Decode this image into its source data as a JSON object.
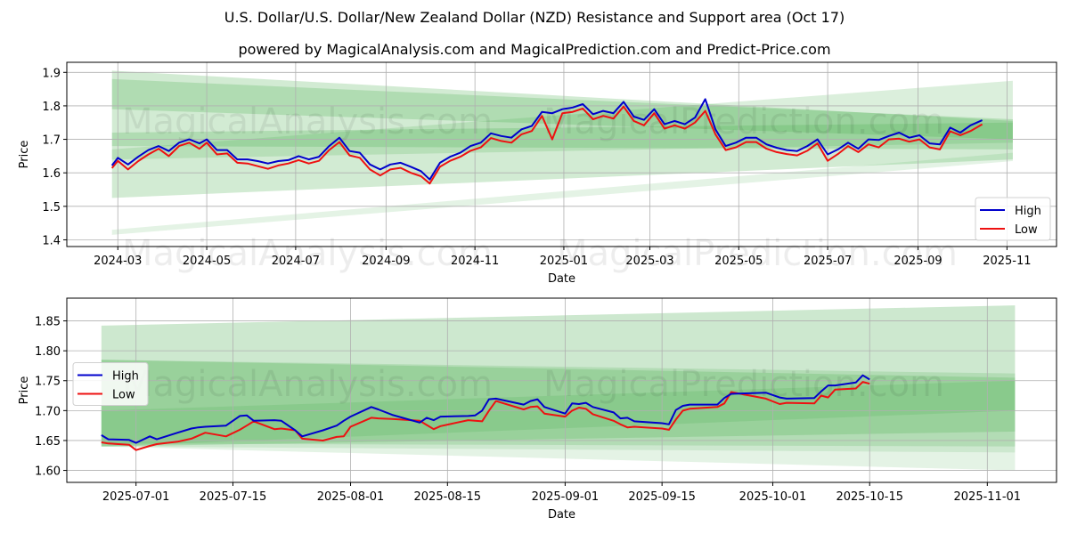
{
  "title": "U.S. Dollar/U.S. Dollar/New Zealand Dollar (NZD) Resistance and Support area (Oct 17)",
  "subtitle": "powered by MagicalAnalysis.com and MagicalPrediction.com and Predict-Price.com",
  "watermarks": [
    "MagicalAnalysis.com",
    "MagicalPrediction.com"
  ],
  "colors": {
    "high": "#0000cc",
    "low": "#ee1111",
    "band": "#4caf50"
  },
  "chart_data": [
    {
      "type": "line",
      "name": "full-history",
      "xlabel": "Date",
      "ylabel": "Price",
      "ylim": [
        1.38,
        1.93
      ],
      "xlim": [
        "2024-01-26",
        "2025-12-05"
      ],
      "yticks": [
        1.4,
        1.5,
        1.6,
        1.7,
        1.8,
        1.9
      ],
      "ytick_labels": [
        "1.4",
        "1.5",
        "1.6",
        "1.7",
        "1.8",
        "1.9"
      ],
      "xticks": [
        "2024-03-01",
        "2024-05-01",
        "2024-07-01",
        "2024-09-01",
        "2024-11-01",
        "2025-01-01",
        "2025-03-01",
        "2025-05-01",
        "2025-07-01",
        "2025-09-01",
        "2025-11-01"
      ],
      "xtick_labels": [
        "2024-03",
        "2024-05",
        "2024-07",
        "2024-09",
        "2024-11",
        "2025-01",
        "2025-03",
        "2025-05",
        "2025-07",
        "2025-09",
        "2025-11"
      ],
      "grid": true,
      "legend": {
        "position": "lower-right",
        "entries": [
          "High",
          "Low"
        ]
      },
      "bands": [
        {
          "start": "2024-02-26",
          "end": "2025-11-05",
          "top": [
            1.905,
            1.755
          ],
          "bottom": [
            1.79,
            1.7
          ],
          "opacity": 0.25
        },
        {
          "start": "2024-02-26",
          "end": "2025-11-05",
          "top": [
            1.88,
            1.76
          ],
          "bottom": [
            1.525,
            1.64
          ],
          "opacity": 0.25
        },
        {
          "start": "2024-02-26",
          "end": "2025-11-05",
          "top": [
            1.72,
            1.75
          ],
          "bottom": [
            1.68,
            1.67
          ],
          "opacity": 0.25
        },
        {
          "start": "2024-02-26",
          "end": "2025-11-05",
          "top": [
            1.67,
            1.875
          ],
          "bottom": [
            1.64,
            1.69
          ],
          "opacity": 0.2
        },
        {
          "start": "2024-02-26",
          "end": "2025-11-05",
          "top": [
            1.43,
            1.66
          ],
          "bottom": [
            1.415,
            1.635
          ],
          "opacity": 0.15
        }
      ],
      "x": [
        "2024-02-26",
        "2024-03-01",
        "2024-03-08",
        "2024-03-15",
        "2024-03-22",
        "2024-03-29",
        "2024-04-05",
        "2024-04-12",
        "2024-04-19",
        "2024-04-26",
        "2024-05-01",
        "2024-05-08",
        "2024-05-15",
        "2024-05-22",
        "2024-05-29",
        "2024-06-05",
        "2024-06-12",
        "2024-06-19",
        "2024-06-26",
        "2024-07-03",
        "2024-07-10",
        "2024-07-17",
        "2024-07-24",
        "2024-07-31",
        "2024-08-07",
        "2024-08-14",
        "2024-08-21",
        "2024-08-28",
        "2024-09-04",
        "2024-09-11",
        "2024-09-18",
        "2024-09-25",
        "2024-10-01",
        "2024-10-08",
        "2024-10-15",
        "2024-10-22",
        "2024-10-29",
        "2024-11-05",
        "2024-11-12",
        "2024-11-19",
        "2024-11-26",
        "2024-12-03",
        "2024-12-10",
        "2024-12-17",
        "2024-12-24",
        "2024-12-31",
        "2025-01-07",
        "2025-01-14",
        "2025-01-21",
        "2025-01-28",
        "2025-02-04",
        "2025-02-11",
        "2025-02-18",
        "2025-02-25",
        "2025-03-04",
        "2025-03-11",
        "2025-03-18",
        "2025-03-25",
        "2025-04-01",
        "2025-04-08",
        "2025-04-15",
        "2025-04-22",
        "2025-04-29",
        "2025-05-06",
        "2025-05-13",
        "2025-05-20",
        "2025-05-27",
        "2025-06-03",
        "2025-06-10",
        "2025-06-17",
        "2025-06-24",
        "2025-07-01",
        "2025-07-08",
        "2025-07-15",
        "2025-07-22",
        "2025-07-29",
        "2025-08-05",
        "2025-08-12",
        "2025-08-19",
        "2025-08-26",
        "2025-09-02",
        "2025-09-09",
        "2025-09-16",
        "2025-09-23",
        "2025-09-30",
        "2025-10-07",
        "2025-10-15"
      ],
      "series": [
        {
          "name": "High",
          "values": [
            1.622,
            1.645,
            1.625,
            1.648,
            1.668,
            1.68,
            1.665,
            1.69,
            1.7,
            1.688,
            1.7,
            1.668,
            1.668,
            1.64,
            1.64,
            1.635,
            1.628,
            1.635,
            1.638,
            1.65,
            1.64,
            1.648,
            1.68,
            1.705,
            1.665,
            1.66,
            1.625,
            1.61,
            1.625,
            1.63,
            1.618,
            1.605,
            1.58,
            1.63,
            1.648,
            1.66,
            1.68,
            1.69,
            1.718,
            1.71,
            1.705,
            1.73,
            1.74,
            1.782,
            1.778,
            1.79,
            1.795,
            1.805,
            1.775,
            1.785,
            1.778,
            1.812,
            1.768,
            1.758,
            1.79,
            1.745,
            1.755,
            1.745,
            1.765,
            1.82,
            1.73,
            1.68,
            1.69,
            1.705,
            1.705,
            1.685,
            1.675,
            1.668,
            1.665,
            1.68,
            1.7,
            1.655,
            1.67,
            1.69,
            1.672,
            1.7,
            1.698,
            1.71,
            1.72,
            1.705,
            1.712,
            1.688,
            1.685,
            1.735,
            1.72,
            1.742,
            1.757
          ]
        },
        {
          "name": "Low",
          "values": [
            1.614,
            1.636,
            1.61,
            1.635,
            1.655,
            1.672,
            1.65,
            1.68,
            1.69,
            1.672,
            1.69,
            1.655,
            1.658,
            1.63,
            1.628,
            1.62,
            1.612,
            1.622,
            1.628,
            1.638,
            1.628,
            1.636,
            1.668,
            1.692,
            1.652,
            1.645,
            1.61,
            1.592,
            1.61,
            1.615,
            1.6,
            1.59,
            1.568,
            1.618,
            1.636,
            1.648,
            1.666,
            1.676,
            1.704,
            1.695,
            1.69,
            1.715,
            1.725,
            1.77,
            1.7,
            1.778,
            1.782,
            1.792,
            1.76,
            1.77,
            1.762,
            1.798,
            1.755,
            1.742,
            1.778,
            1.732,
            1.742,
            1.732,
            1.75,
            1.785,
            1.715,
            1.668,
            1.676,
            1.692,
            1.692,
            1.672,
            1.662,
            1.656,
            1.652,
            1.666,
            1.688,
            1.636,
            1.656,
            1.68,
            1.662,
            1.685,
            1.676,
            1.7,
            1.702,
            1.693,
            1.7,
            1.676,
            1.67,
            1.724,
            1.712,
            1.725,
            1.745
          ]
        }
      ]
    },
    {
      "type": "line",
      "name": "recent-zoom",
      "xlabel": "Date",
      "ylabel": "Price",
      "ylim": [
        1.58,
        1.888
      ],
      "xlim": [
        "2025-06-21",
        "2025-11-11"
      ],
      "yticks": [
        1.6,
        1.65,
        1.7,
        1.75,
        1.8,
        1.85
      ],
      "ytick_labels": [
        "1.60",
        "1.65",
        "1.70",
        "1.75",
        "1.80",
        "1.85"
      ],
      "xticks": [
        "2025-07-01",
        "2025-07-15",
        "2025-08-01",
        "2025-08-15",
        "2025-09-01",
        "2025-09-15",
        "2025-10-01",
        "2025-10-15",
        "2025-11-01"
      ],
      "xtick_labels": [
        "2025-07-01",
        "2025-07-15",
        "2025-08-01",
        "2025-08-15",
        "2025-09-01",
        "2025-09-15",
        "2025-10-01",
        "2025-10-15",
        "2025-11-01"
      ],
      "grid": true,
      "legend": {
        "position": "center-left",
        "entries": [
          "High",
          "Low"
        ]
      },
      "bands": [
        {
          "start": "2025-06-26",
          "end": "2025-11-05",
          "top": [
            1.842,
            1.876
          ],
          "bottom": [
            1.64,
            1.6
          ],
          "opacity": 0.15
        },
        {
          "start": "2025-06-26",
          "end": "2025-11-05",
          "top": [
            1.842,
            1.876
          ],
          "bottom": [
            1.64,
            1.63
          ],
          "opacity": 0.15
        },
        {
          "start": "2025-06-26",
          "end": "2025-11-05",
          "top": [
            1.785,
            1.762
          ],
          "bottom": [
            1.645,
            1.64
          ],
          "opacity": 0.2
        },
        {
          "start": "2025-06-26",
          "end": "2025-11-05",
          "top": [
            1.785,
            1.755
          ],
          "bottom": [
            1.64,
            1.665
          ],
          "opacity": 0.25
        },
        {
          "start": "2025-06-26",
          "end": "2025-11-05",
          "top": [
            1.7,
            1.75
          ],
          "bottom": [
            1.64,
            1.7
          ],
          "opacity": 0.2
        }
      ],
      "x": [
        "2025-06-26",
        "2025-06-27",
        "2025-06-30",
        "2025-07-01",
        "2025-07-03",
        "2025-07-04",
        "2025-07-07",
        "2025-07-09",
        "2025-07-10",
        "2025-07-11",
        "2025-07-14",
        "2025-07-16",
        "2025-07-17",
        "2025-07-18",
        "2025-07-21",
        "2025-07-22",
        "2025-07-24",
        "2025-07-25",
        "2025-07-28",
        "2025-07-30",
        "2025-07-31",
        "2025-08-01",
        "2025-08-04",
        "2025-08-05",
        "2025-08-07",
        "2025-08-11",
        "2025-08-12",
        "2025-08-13",
        "2025-08-14",
        "2025-08-18",
        "2025-08-19",
        "2025-08-20",
        "2025-08-21",
        "2025-08-22",
        "2025-08-26",
        "2025-08-27",
        "2025-08-28",
        "2025-08-29",
        "2025-09-01",
        "2025-09-02",
        "2025-09-03",
        "2025-09-04",
        "2025-09-05",
        "2025-09-08",
        "2025-09-09",
        "2025-09-10",
        "2025-09-11",
        "2025-09-15",
        "2025-09-16",
        "2025-09-17",
        "2025-09-18",
        "2025-09-19",
        "2025-09-23",
        "2025-09-24",
        "2025-09-25",
        "2025-09-30",
        "2025-10-02",
        "2025-10-03",
        "2025-10-07",
        "2025-10-08",
        "2025-10-09",
        "2025-10-10",
        "2025-10-13",
        "2025-10-14",
        "2025-10-15"
      ],
      "series": [
        {
          "name": "High",
          "values": [
            1.659,
            1.652,
            1.651,
            1.646,
            1.657,
            1.652,
            1.663,
            1.67,
            1.672,
            1.673,
            1.675,
            1.691,
            1.692,
            1.683,
            1.684,
            1.683,
            1.667,
            1.657,
            1.667,
            1.675,
            1.683,
            1.69,
            1.706,
            1.702,
            1.693,
            1.68,
            1.688,
            1.684,
            1.69,
            1.691,
            1.692,
            1.7,
            1.719,
            1.72,
            1.71,
            1.716,
            1.719,
            1.706,
            1.695,
            1.712,
            1.711,
            1.713,
            1.706,
            1.697,
            1.687,
            1.688,
            1.682,
            1.679,
            1.677,
            1.701,
            1.708,
            1.71,
            1.71,
            1.721,
            1.728,
            1.73,
            1.722,
            1.72,
            1.721,
            1.732,
            1.742,
            1.742,
            1.747,
            1.759,
            1.752
          ]
        },
        {
          "name": "Low",
          "values": [
            1.647,
            1.645,
            1.643,
            1.634,
            1.641,
            1.644,
            1.648,
            1.653,
            1.658,
            1.663,
            1.657,
            1.668,
            1.675,
            1.682,
            1.669,
            1.67,
            1.667,
            1.653,
            1.65,
            1.656,
            1.657,
            1.673,
            1.688,
            1.687,
            1.686,
            1.683,
            1.676,
            1.669,
            1.674,
            1.684,
            1.683,
            1.682,
            1.7,
            1.716,
            1.702,
            1.706,
            1.707,
            1.695,
            1.69,
            1.7,
            1.705,
            1.703,
            1.694,
            1.683,
            1.677,
            1.672,
            1.673,
            1.67,
            1.668,
            1.685,
            1.7,
            1.703,
            1.706,
            1.712,
            1.731,
            1.72,
            1.711,
            1.713,
            1.712,
            1.725,
            1.722,
            1.735,
            1.737,
            1.748,
            1.745
          ]
        }
      ]
    }
  ]
}
